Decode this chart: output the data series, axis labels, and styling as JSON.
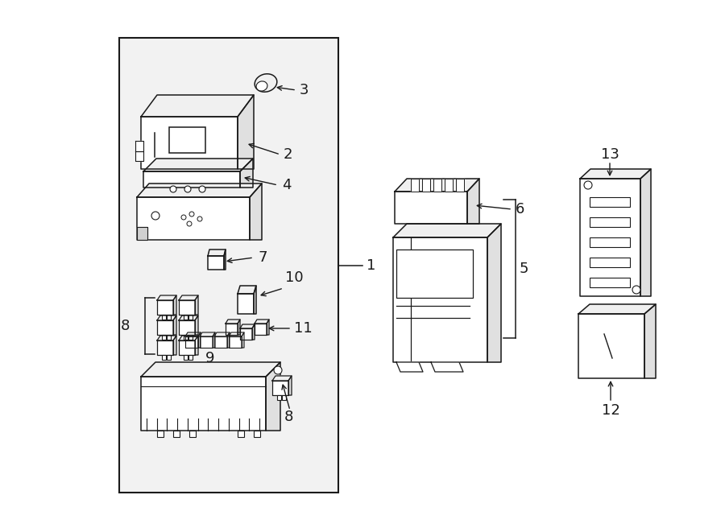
{
  "bg": "white",
  "lc": "#1a1a1a",
  "lw": 1.1,
  "fig_w": 9.0,
  "fig_h": 6.61,
  "dpi": 100
}
